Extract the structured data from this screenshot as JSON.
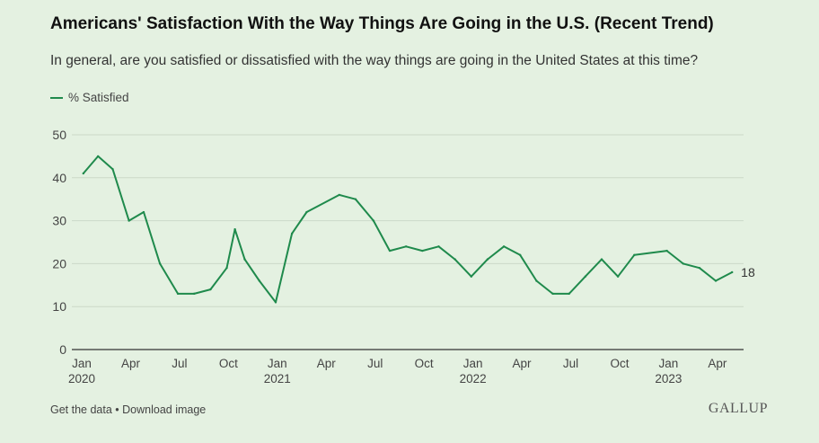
{
  "title": "Americans' Satisfaction With the Way Things Are Going in the U.S. (Recent Trend)",
  "subtitle": "In general, are you satisfied or dissatisfied with the way things are going in the United States at this time?",
  "legend": {
    "label": "% Satisfied"
  },
  "footer": {
    "get_data": "Get the data",
    "separator": " • ",
    "download": "Download image"
  },
  "brand": "GALLUP",
  "colors": {
    "line": "#1f8a4c",
    "grid": "#cbd9c8",
    "axis": "#333333",
    "background": "#e4f1e1"
  },
  "chart_data": {
    "type": "line",
    "title": "Americans' Satisfaction With the Way Things Are Going in the U.S. (Recent Trend)",
    "ylim": [
      0,
      50
    ],
    "yticks": [
      0,
      10,
      20,
      30,
      40,
      50
    ],
    "grid": true,
    "legend_position": "top-left",
    "x_ticks": [
      {
        "label": "Jan",
        "year": "2020",
        "t": 0
      },
      {
        "label": "Apr",
        "year": "",
        "t": 3
      },
      {
        "label": "Jul",
        "year": "",
        "t": 6
      },
      {
        "label": "Oct",
        "year": "",
        "t": 9
      },
      {
        "label": "Jan",
        "year": "2021",
        "t": 12
      },
      {
        "label": "Apr",
        "year": "",
        "t": 15
      },
      {
        "label": "Jul",
        "year": "",
        "t": 18
      },
      {
        "label": "Oct",
        "year": "",
        "t": 21
      },
      {
        "label": "Jan",
        "year": "2022",
        "t": 24
      },
      {
        "label": "Apr",
        "year": "",
        "t": 27
      },
      {
        "label": "Jul",
        "year": "",
        "t": 30
      },
      {
        "label": "Oct",
        "year": "",
        "t": 33
      },
      {
        "label": "Jan",
        "year": "2023",
        "t": 36
      },
      {
        "label": "Apr",
        "year": "",
        "t": 39
      }
    ],
    "series": [
      {
        "name": "% Satisfied",
        "end_label": "18",
        "points": [
          {
            "t": 0.1,
            "v": 41
          },
          {
            "t": 1.0,
            "v": 45
          },
          {
            "t": 1.9,
            "v": 42
          },
          {
            "t": 2.9,
            "v": 30
          },
          {
            "t": 3.8,
            "v": 32
          },
          {
            "t": 4.8,
            "v": 20
          },
          {
            "t": 5.9,
            "v": 13
          },
          {
            "t": 6.9,
            "v": 13
          },
          {
            "t": 7.9,
            "v": 14
          },
          {
            "t": 8.9,
            "v": 19
          },
          {
            "t": 9.4,
            "v": 28
          },
          {
            "t": 10.0,
            "v": 21
          },
          {
            "t": 10.9,
            "v": 16
          },
          {
            "t": 11.9,
            "v": 11
          },
          {
            "t": 12.9,
            "v": 27
          },
          {
            "t": 13.8,
            "v": 32
          },
          {
            "t": 15.8,
            "v": 36
          },
          {
            "t": 16.8,
            "v": 35
          },
          {
            "t": 17.9,
            "v": 30
          },
          {
            "t": 18.9,
            "v": 23
          },
          {
            "t": 19.9,
            "v": 24
          },
          {
            "t": 20.9,
            "v": 23
          },
          {
            "t": 21.9,
            "v": 24
          },
          {
            "t": 22.9,
            "v": 21
          },
          {
            "t": 23.9,
            "v": 17
          },
          {
            "t": 24.9,
            "v": 21
          },
          {
            "t": 25.9,
            "v": 24
          },
          {
            "t": 26.9,
            "v": 22
          },
          {
            "t": 27.9,
            "v": 16
          },
          {
            "t": 28.9,
            "v": 13
          },
          {
            "t": 29.9,
            "v": 13
          },
          {
            "t": 30.9,
            "v": 17
          },
          {
            "t": 31.9,
            "v": 21
          },
          {
            "t": 32.9,
            "v": 17
          },
          {
            "t": 33.9,
            "v": 22
          },
          {
            "t": 35.9,
            "v": 23
          },
          {
            "t": 36.9,
            "v": 20
          },
          {
            "t": 37.9,
            "v": 19
          },
          {
            "t": 38.9,
            "v": 16
          },
          {
            "t": 39.9,
            "v": 18
          }
        ]
      }
    ]
  }
}
